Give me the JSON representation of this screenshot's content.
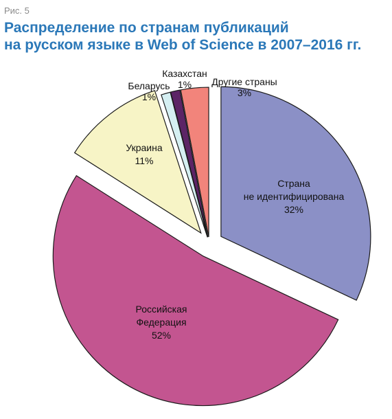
{
  "figure_label": "Рис. 5",
  "chart_data": {
    "type": "pie",
    "title": [
      "Распределение по странам публикаций",
      "на русском языке в Web of Science в 2007–2016 гг."
    ],
    "slices": [
      {
        "label": [
          "Страна",
          "не идентифицирована"
        ],
        "value": 32,
        "value_label": "32%",
        "color": "#8b90c6",
        "exploded": true
      },
      {
        "label": [
          "Российская",
          "Федерация"
        ],
        "value": 52,
        "value_label": "52%",
        "color": "#c35590",
        "exploded": true
      },
      {
        "label": [
          "Украина"
        ],
        "value": 11,
        "value_label": "11%",
        "color": "#f7f4c6",
        "exploded": true
      },
      {
        "label": [
          "Беларусь"
        ],
        "value": 1,
        "value_label": "1%",
        "color": "#d5eff2",
        "exploded": true
      },
      {
        "label": [
          "Казахстан"
        ],
        "value": 1,
        "value_label": "1%",
        "color": "#5c2466",
        "exploded": true
      },
      {
        "label": [
          "Другие страны"
        ],
        "value": 3,
        "value_label": "3%",
        "color": "#f2847b",
        "exploded": true
      }
    ]
  }
}
